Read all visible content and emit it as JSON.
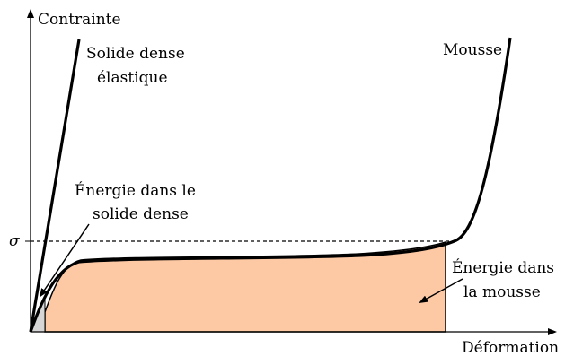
{
  "axes": {
    "y_label": "Contrainte",
    "x_label": "Déformation",
    "stress_symbol": "σ"
  },
  "labels": {
    "dense_solid_line1": "Solide dense",
    "dense_solid_line2": "élastique",
    "foam": "Mousse",
    "dense_energy_line1": "Énergie dans le",
    "dense_energy_line2": "solide dense",
    "foam_energy_line1": "Énergie dans",
    "foam_energy_line2": "la mousse"
  },
  "colors": {
    "foam_energy_fill": "#fdc9a5",
    "dense_energy_fill": "#d6d6d6",
    "line": "#000000"
  }
}
